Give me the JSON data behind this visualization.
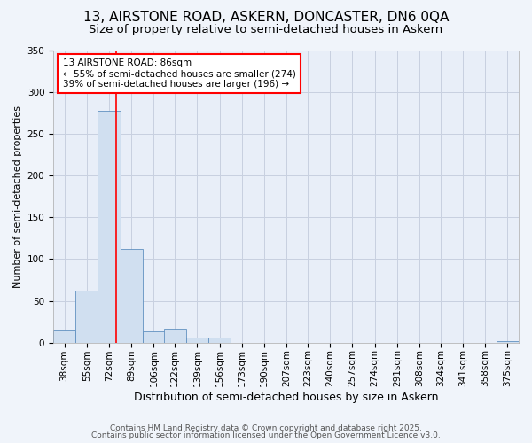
{
  "title1": "13, AIRSTONE ROAD, ASKERN, DONCASTER, DN6 0QA",
  "title2": "Size of property relative to semi-detached houses in Askern",
  "xlabel": "Distribution of semi-detached houses by size in Askern",
  "ylabel": "Number of semi-detached properties",
  "bins": [
    38,
    55,
    72,
    89,
    106,
    122,
    139,
    156,
    173,
    190,
    207,
    223,
    240,
    257,
    274,
    291,
    308,
    324,
    341,
    358,
    375
  ],
  "values": [
    15,
    62,
    277,
    112,
    13,
    17,
    6,
    6,
    0,
    0,
    0,
    0,
    0,
    0,
    0,
    0,
    0,
    0,
    0,
    0,
    2
  ],
  "bar_color": "#d0dff0",
  "bar_edge_color": "#6090c0",
  "vline_x": 86,
  "vline_color": "red",
  "annotation_title": "13 AIRSTONE ROAD: 86sqm",
  "annotation_line2": "← 55% of semi-detached houses are smaller (274)",
  "annotation_line3": "39% of semi-detached houses are larger (196) →",
  "annotation_box_color": "red",
  "annotation_fill": "white",
  "ylim": [
    0,
    350
  ],
  "yticks": [
    0,
    50,
    100,
    150,
    200,
    250,
    300,
    350
  ],
  "bg_color": "#f0f4fa",
  "plot_bg_color": "#e8eef8",
  "grid_color": "#c8d0e0",
  "footer1": "Contains HM Land Registry data © Crown copyright and database right 2025.",
  "footer2": "Contains public sector information licensed under the Open Government Licence v3.0.",
  "title1_fontsize": 11,
  "title2_fontsize": 9.5,
  "xlabel_fontsize": 9,
  "ylabel_fontsize": 8,
  "tick_fontsize": 7.5,
  "footer_fontsize": 6.5
}
